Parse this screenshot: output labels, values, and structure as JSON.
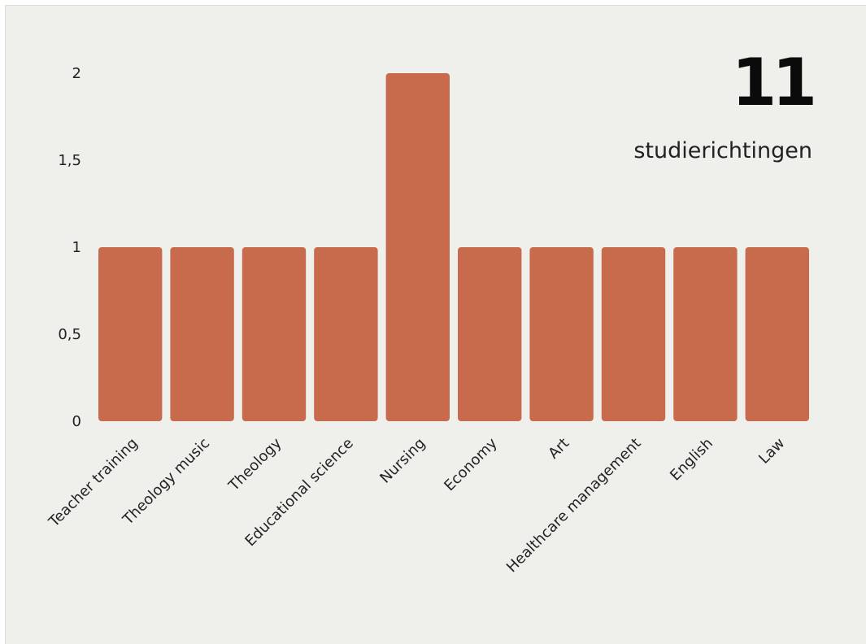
{
  "kpi": {
    "value": "11",
    "label": "studierichtingen"
  },
  "colors": {
    "bar": "#c76b4c",
    "background": "#eff0ec",
    "text": "#222222"
  },
  "chart_data": {
    "type": "bar",
    "title": "",
    "xlabel": "",
    "ylabel": "",
    "categories": [
      "Teacher training",
      "Theology music",
      "Theology",
      "Educational science",
      "Nursing",
      "Economy",
      "Art",
      "Healthcare management",
      "English",
      "Law"
    ],
    "values": [
      1,
      1,
      1,
      1,
      2,
      1,
      1,
      1,
      1,
      1
    ],
    "ylim": [
      0,
      2
    ],
    "yticks": [
      "0",
      "0,5",
      "1",
      "1,5",
      "2"
    ],
    "ytick_values": [
      0,
      0.5,
      1,
      1.5,
      2
    ],
    "grid": false,
    "legend": "none"
  }
}
